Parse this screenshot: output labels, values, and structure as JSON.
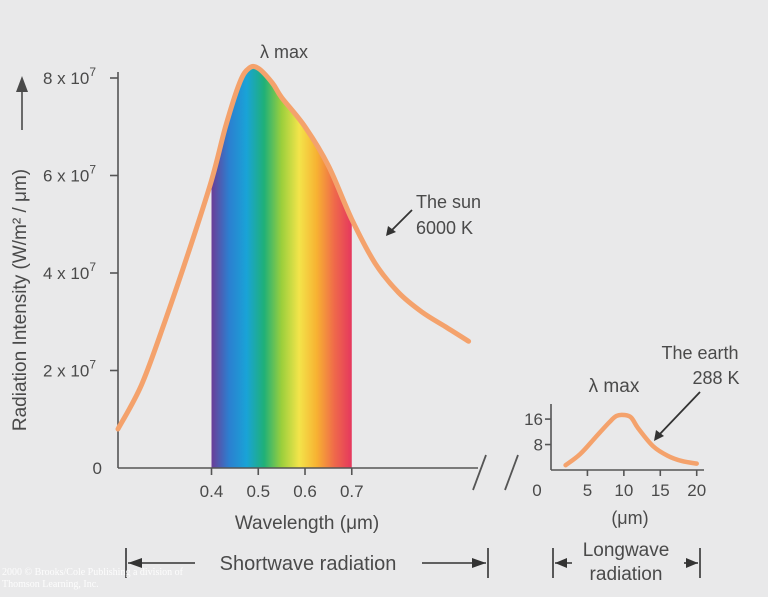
{
  "chart_data": [
    {
      "type": "line",
      "title": "",
      "series_label": "The sun",
      "series_temp": "6000 K",
      "peak_label": "λ max",
      "ylabel": "Radiation Intensity (W/m² / μm)",
      "y_ticks": [
        {
          "value": 0,
          "label": "0"
        },
        {
          "value": 20000000.0,
          "base": "2 x 10",
          "exp": "7"
        },
        {
          "value": 40000000.0,
          "base": "4 x 10",
          "exp": "7"
        },
        {
          "value": 60000000.0,
          "base": "6 x 10",
          "exp": "7"
        },
        {
          "value": 80000000.0,
          "base": "8 x 10",
          "exp": "7"
        }
      ],
      "ylim": [
        0,
        80000000.0
      ],
      "xlabel": "Wavelength (μm)",
      "x_ticks": [
        "0.4",
        "0.5",
        "0.6",
        "0.7"
      ],
      "x_tick_values": [
        0.4,
        0.5,
        0.6,
        0.7
      ],
      "xlim": [
        0.2,
        0.97
      ],
      "visible_band_um": [
        0.4,
        0.7
      ],
      "x": [
        0.2,
        0.25,
        0.3,
        0.35,
        0.4,
        0.43,
        0.46,
        0.48,
        0.5,
        0.53,
        0.55,
        0.6,
        0.65,
        0.7,
        0.75,
        0.8,
        0.85,
        0.9,
        0.95
      ],
      "y": [
        8000000.0,
        17000000.0,
        30000000.0,
        44000000.0,
        59000000.0,
        70000000.0,
        79000000.0,
        82000000.0,
        82000000.0,
        79000000.0,
        76000000.0,
        70000000.0,
        62000000.0,
        51000000.0,
        42000000.0,
        36000000.0,
        32000000.0,
        29000000.0,
        26000000.0
      ]
    },
    {
      "type": "line",
      "series_label": "The earth",
      "series_temp": "288 K",
      "peak_label": "λ max",
      "xlabel": "(μm)",
      "x_ticks": [
        "0",
        "5",
        "10",
        "15",
        "20"
      ],
      "x_tick_values": [
        0,
        5,
        10,
        15,
        20
      ],
      "xlim": [
        0,
        21
      ],
      "y_ticks": [
        "16",
        "8"
      ],
      "y_tick_values": [
        16,
        8
      ],
      "ylim": [
        0,
        22
      ],
      "x": [
        2,
        4,
        6,
        8,
        9,
        10,
        11,
        12,
        14,
        16,
        18,
        20
      ],
      "y": [
        1.5,
        5,
        10,
        15,
        17,
        17.3,
        16.5,
        13,
        7.5,
        4.5,
        2.8,
        2
      ]
    }
  ],
  "shortwave_label": "Shortwave radiation",
  "longwave_label": [
    "Longwave",
    "radiation"
  ],
  "copyright": "2000 © Brooks/Cole Publishing a division of Thomson Learning, Inc.",
  "colors": {
    "curve": "#f4a26c",
    "axis": "#555555",
    "background": "#e9e9ea"
  },
  "spectrum_colors": [
    "#6b3d97",
    "#2c7fd0",
    "#19a3d7",
    "#1fb078",
    "#9bcf3c",
    "#f3e44a",
    "#f7b232",
    "#ef6a4a",
    "#e5375e"
  ]
}
